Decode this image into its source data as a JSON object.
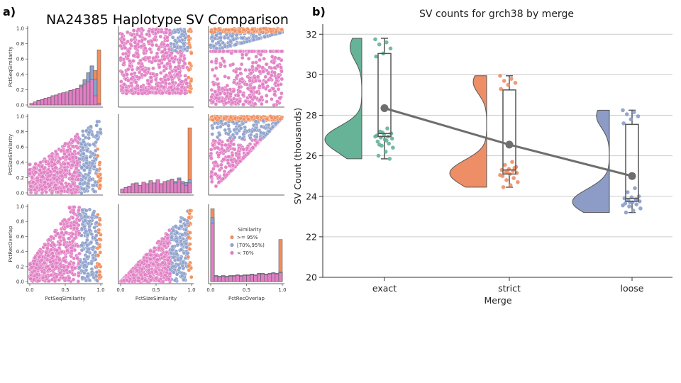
{
  "panel_a": {
    "label": "a)",
    "title": "NA24385 Haplotype SV Comparison",
    "variables": [
      "PctSeqSimilarity",
      "PctSizeSimilarity",
      "PctRecOverlap"
    ],
    "tick_values": [
      0.0,
      0.2,
      0.4,
      0.6,
      0.8,
      1.0
    ],
    "x_tick_labels": [
      "0.0",
      "0.5",
      "1.0"
    ],
    "y_tick_labels": [
      "0.0",
      "0.2",
      "0.4",
      "0.6",
      "0.8",
      "1.0"
    ],
    "legend": {
      "title": "Similarity",
      "entries": [
        {
          "label": ">= 95%",
          "color": "#f28e5c"
        },
        {
          "label": "[70%,95%)",
          "color": "#8fa2cc"
        },
        {
          "label": "< 70%",
          "color": "#e07fc4"
        }
      ]
    },
    "colors": {
      "high": "#f28e5c",
      "mid": "#8fa2cc",
      "low": "#e07fc4"
    }
  },
  "chart_data": {
    "type": "raincloud",
    "label": "b)",
    "title": "SV counts for grch38 by merge",
    "xlabel": "Merge",
    "ylabel": "SV Count (thousands)",
    "categories": [
      "exact",
      "strict",
      "loose"
    ],
    "colors": [
      "#66b398",
      "#ee8e67",
      "#8c9cc6"
    ],
    "means": [
      28.35,
      26.55,
      25.0
    ],
    "boxes": [
      {
        "min": 25.85,
        "q1": 26.95,
        "median": 27.1,
        "q3": 31.05,
        "max": 31.8
      },
      {
        "min": 24.45,
        "q1": 25.1,
        "median": 25.3,
        "q3": 29.25,
        "max": 29.95
      },
      {
        "min": 23.2,
        "q1": 23.75,
        "median": 23.9,
        "q3": 27.55,
        "max": 28.25
      }
    ],
    "points": [
      [
        31.75,
        31.6,
        31.5,
        31.3,
        31.05,
        30.9,
        27.35,
        27.2,
        27.1,
        27.05,
        27.0,
        26.95,
        26.9,
        26.85,
        26.8,
        26.7,
        26.6,
        26.5,
        26.4,
        26.2,
        26.0,
        25.85,
        27.15,
        26.95,
        26.75,
        26.55
      ],
      [
        29.95,
        29.8,
        29.7,
        29.6,
        29.5,
        29.3,
        25.7,
        25.55,
        25.45,
        25.35,
        25.3,
        25.25,
        25.2,
        25.15,
        25.1,
        25.0,
        24.9,
        24.8,
        24.7,
        24.55,
        24.45,
        25.4,
        25.2,
        25.05
      ],
      [
        28.25,
        28.15,
        28.05,
        27.95,
        27.8,
        27.6,
        24.4,
        24.2,
        24.0,
        23.95,
        23.9,
        23.85,
        23.8,
        23.75,
        23.7,
        23.65,
        23.6,
        23.5,
        23.4,
        23.3,
        23.2,
        23.85,
        23.7,
        23.55
      ]
    ],
    "ylim": [
      20,
      32.5
    ],
    "yticks": [
      20,
      22,
      24,
      26,
      28,
      30,
      32
    ],
    "grid": true
  }
}
